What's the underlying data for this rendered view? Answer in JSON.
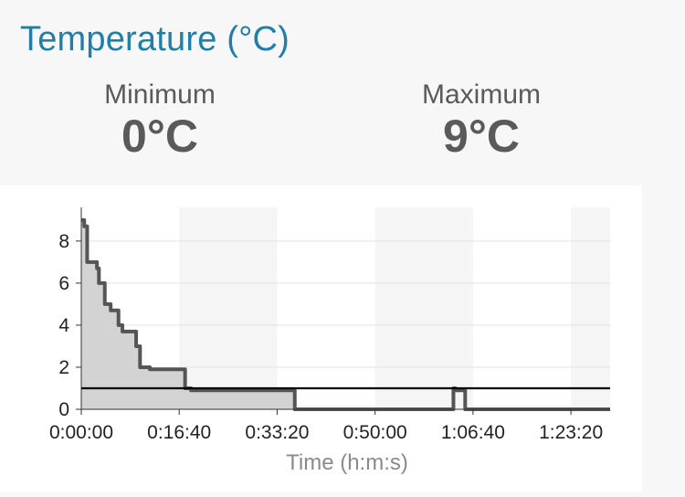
{
  "header": {
    "title": "Temperature (°C)"
  },
  "stats": {
    "minimum": {
      "label": "Minimum",
      "value": "0°C"
    },
    "maximum": {
      "label": "Maximum",
      "value": "9°C"
    }
  },
  "chart_data": {
    "type": "area",
    "xlabel": "Time (h:m:s)",
    "ylabel": "",
    "xlim": [
      0,
      5400
    ],
    "ylim": [
      0,
      9.6
    ],
    "x_ticks": [
      0,
      1000,
      2000,
      3000,
      4000,
      5000
    ],
    "x_tick_labels": [
      "0:00:00",
      "0:16:40",
      "0:33:20",
      "0:50:00",
      "1:06:40",
      "1:23:20"
    ],
    "y_ticks": [
      0,
      2,
      4,
      6,
      8
    ],
    "y_tick_labels": [
      "0",
      "2",
      "4",
      "6",
      "8"
    ],
    "grid": true,
    "alternating_bands": true,
    "series": [
      {
        "x": [
          0,
          30,
          30,
          60,
          60,
          160,
          160,
          180,
          180,
          240,
          240,
          300,
          300,
          380,
          380,
          420,
          420,
          560,
          560,
          600,
          600,
          700,
          700,
          1060,
          1060,
          1120,
          1120,
          2180,
          2180,
          3800,
          3800,
          3820,
          3820,
          3920,
          3920,
          3940,
          3940,
          5400
        ],
        "y": [
          9,
          9,
          8.7,
          8.7,
          7,
          7,
          6.7,
          6.7,
          6,
          6,
          5,
          5,
          4.7,
          4.7,
          4,
          4,
          3.7,
          3.7,
          3,
          3,
          2,
          2,
          1.9,
          1.9,
          1,
          1,
          0.9,
          0.9,
          0,
          0,
          1,
          1,
          0.9,
          0.9,
          0,
          0,
          0,
          0
        ],
        "fill_until": 2200,
        "color": "#555555",
        "fill": "#d3d3d3"
      }
    ],
    "reference_line": {
      "y": 1,
      "color": "#000000"
    }
  }
}
